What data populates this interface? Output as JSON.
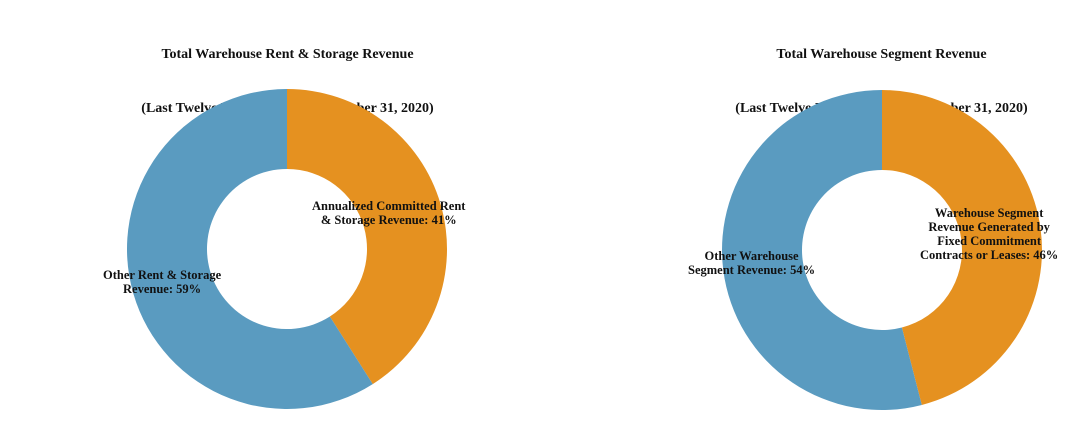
{
  "colors": {
    "blue": "#5A9BC0",
    "orange": "#E59120"
  },
  "chart_data": [
    {
      "type": "pie",
      "variant": "donut",
      "title": "Total Warehouse Rent & Storage Revenue",
      "subtitle": "(Last Twelve Months Ended  December 31, 2020)",
      "start": "top",
      "direction": "clockwise",
      "slices": [
        {
          "name": "Annualized Committed Rent & Storage Revenue",
          "label": "Annualized Committed Rent\n& Storage Revenue: 41%",
          "value": 41,
          "color": "#E59120"
        },
        {
          "name": "Other Rent & Storage Revenue",
          "label": "Other Rent & Storage\nRevenue: 59%",
          "value": 59,
          "color": "#5A9BC0"
        }
      ]
    },
    {
      "type": "pie",
      "variant": "donut",
      "title": "Total Warehouse Segment Revenue",
      "subtitle": "(Last Twelve Months Ended  December 31, 2020)",
      "start": "top",
      "direction": "clockwise",
      "slices": [
        {
          "name": "Warehouse Segment Revenue Generated by Fixed Commitment Contracts or Leases",
          "label": "Warehouse Segment\nRevenue Generated by\nFixed Commitment\nContracts or Leases: 46%",
          "value": 46,
          "color": "#E59120"
        },
        {
          "name": "Other Warehouse Segment Revenue",
          "label": "Other Warehouse\nSegment Revenue: 54%",
          "value": 54,
          "color": "#5A9BC0"
        }
      ]
    }
  ]
}
